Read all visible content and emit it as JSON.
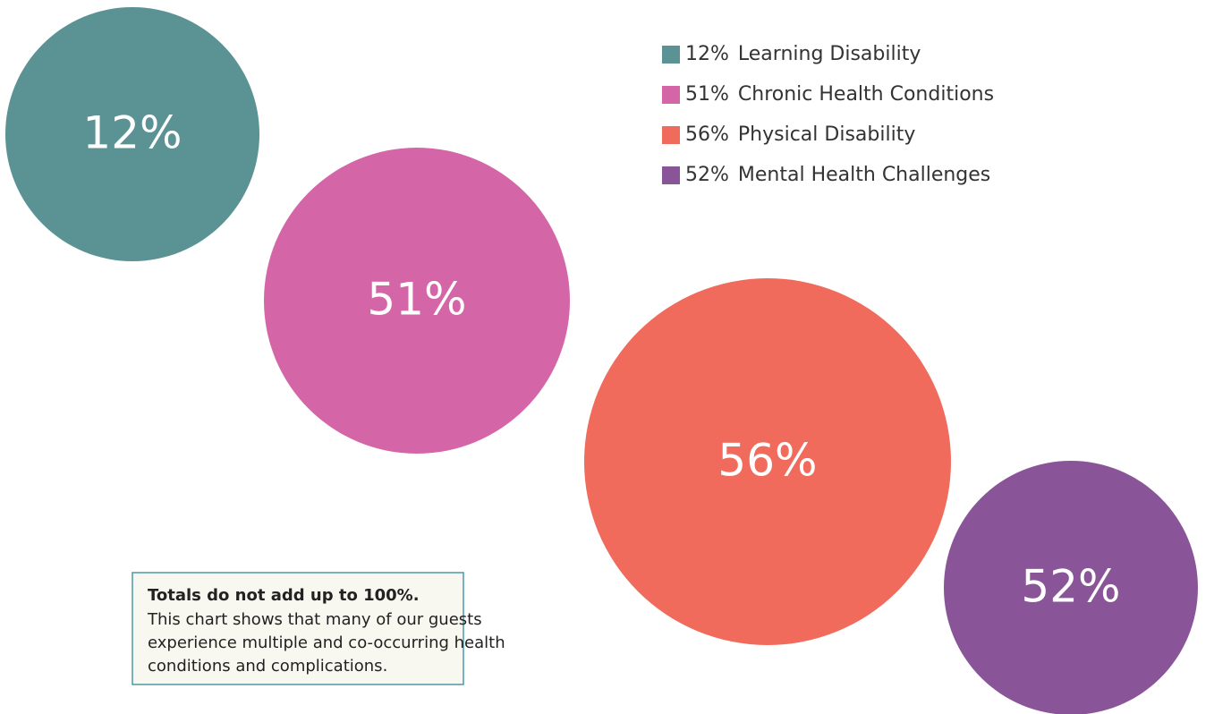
{
  "chart_data": {
    "type": "bubble",
    "categories": [
      "Learning Disability",
      "Chronic Health Conditions",
      "Physical Disability",
      "Mental Health Challenges"
    ],
    "values": [
      12,
      51,
      56,
      52
    ],
    "value_labels": [
      "12%",
      "51%",
      "56%",
      "52%"
    ],
    "colors": [
      "#5b9294",
      "#d466a8",
      "#f06b5c",
      "#8a5598"
    ],
    "legend": "top-right"
  },
  "note": {
    "title": "Totals do not add up to 100%.",
    "lines": [
      "This chart shows that many of our guests",
      "experience multiple and co-occurring health",
      "conditions and complications."
    ]
  }
}
